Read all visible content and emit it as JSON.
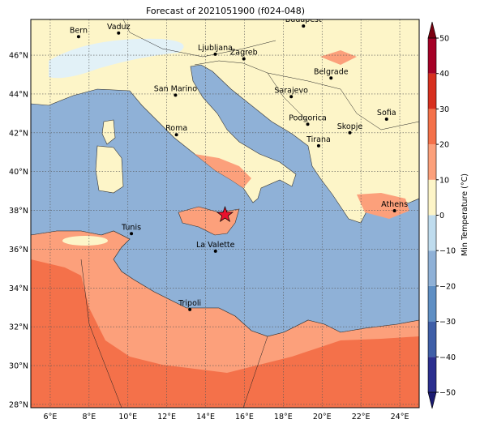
{
  "title": "Forecast of 2021051900 (f024-048)",
  "map": {
    "xlim": [
      5,
      25
    ],
    "ylim": [
      27.83,
      47.84
    ],
    "grid": true,
    "xticks": [
      {
        "value": 6,
        "label": "6°E"
      },
      {
        "value": 8,
        "label": "8°E"
      },
      {
        "value": 10,
        "label": "10°E"
      },
      {
        "value": 12,
        "label": "12°E"
      },
      {
        "value": 14,
        "label": "14°E"
      },
      {
        "value": 16,
        "label": "16°E"
      },
      {
        "value": 18,
        "label": "18°E"
      },
      {
        "value": 20,
        "label": "20°E"
      },
      {
        "value": 22,
        "label": "22°E"
      },
      {
        "value": 24,
        "label": "24°E"
      }
    ],
    "yticks": [
      {
        "value": 28,
        "label": "28°N"
      },
      {
        "value": 30,
        "label": "30°N"
      },
      {
        "value": 32,
        "label": "32°N"
      },
      {
        "value": 34,
        "label": "34°N"
      },
      {
        "value": 36,
        "label": "36°N"
      },
      {
        "value": 38,
        "label": "38°N"
      },
      {
        "value": 40,
        "label": "40°N"
      },
      {
        "value": 42,
        "label": "42°N"
      },
      {
        "value": 44,
        "label": "44°N"
      },
      {
        "value": 46,
        "label": "46°N"
      }
    ]
  },
  "cities": [
    {
      "name": "Bern",
      "lon": 7.46,
      "lat": 46.95
    },
    {
      "name": "Vaduz",
      "lon": 9.52,
      "lat": 47.14
    },
    {
      "name": "Budapest",
      "lon": 19.04,
      "lat": 47.5
    },
    {
      "name": "Ljubljana",
      "lon": 14.5,
      "lat": 46.05
    },
    {
      "name": "Zagreb",
      "lon": 15.97,
      "lat": 45.81
    },
    {
      "name": "Belgrade",
      "lon": 20.46,
      "lat": 44.82
    },
    {
      "name": "San Marino",
      "lon": 12.45,
      "lat": 43.94
    },
    {
      "name": "Sarajevo",
      "lon": 18.41,
      "lat": 43.86
    },
    {
      "name": "Podgorica",
      "lon": 19.26,
      "lat": 42.44
    },
    {
      "name": "Sofia",
      "lon": 23.32,
      "lat": 42.7
    },
    {
      "name": "Skopje",
      "lon": 21.43,
      "lat": 42.0
    },
    {
      "name": "Roma",
      "lon": 12.5,
      "lat": 41.9
    },
    {
      "name": "Tirana",
      "lon": 19.82,
      "lat": 41.33
    },
    {
      "name": "Athens",
      "lon": 23.73,
      "lat": 37.98
    },
    {
      "name": "Tunis",
      "lon": 10.18,
      "lat": 36.8
    },
    {
      "name": "La Valette",
      "lon": 14.51,
      "lat": 35.9
    },
    {
      "name": "Tripoli",
      "lon": 13.19,
      "lat": 32.89
    }
  ],
  "marker": {
    "lon": 15.0,
    "lat": 37.77
  },
  "colorbar": {
    "label": "Min Temperature (°C)",
    "lim": [
      -50,
      50
    ],
    "ticks": [
      {
        "value": -50,
        "label": "−50"
      },
      {
        "value": -40,
        "label": "−40"
      },
      {
        "value": -30,
        "label": "−30"
      },
      {
        "value": -20,
        "label": "−20"
      },
      {
        "value": -10,
        "label": "−10"
      },
      0,
      10,
      20,
      30,
      40,
      50
    ],
    "colors": [
      "#2b2f8f",
      "#3f5fa8",
      "#5f8fc4",
      "#8fb1d7",
      "#bfdcee",
      "#fdf5c8",
      "#fca07b",
      "#f4714a",
      "#d7301f",
      "#a50026"
    ],
    "under": "#1a1a70",
    "over": "#7a0010"
  }
}
